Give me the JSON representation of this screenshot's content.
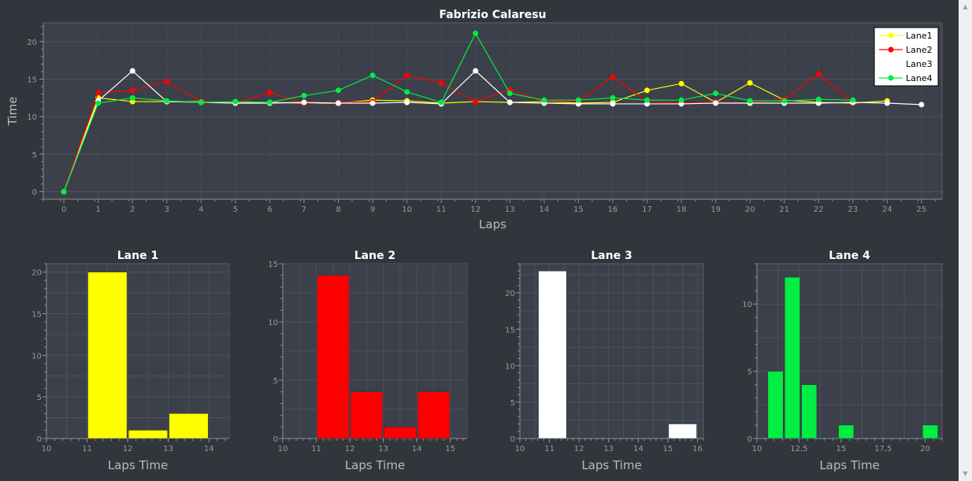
{
  "chart_data": [
    {
      "type": "line",
      "title": "Fabrizio Calaresu",
      "xlabel": "Laps",
      "ylabel": "Time",
      "xlim": [
        -0.6,
        25.6
      ],
      "ylim": [
        -1,
        22.5
      ],
      "xticks": [
        0,
        1,
        2,
        3,
        4,
        5,
        6,
        7,
        8,
        9,
        10,
        11,
        12,
        13,
        14,
        15,
        16,
        17,
        18,
        19,
        20,
        21,
        22,
        23,
        24,
        25
      ],
      "yticks": [
        0,
        5,
        10,
        15,
        20
      ],
      "grid": true,
      "legend_position": "top-right",
      "series": [
        {
          "name": "Lane1",
          "color": "#ffff00",
          "x": [
            0,
            1,
            2,
            3,
            4,
            5,
            6,
            7,
            8,
            9,
            10,
            11,
            12,
            13,
            14,
            15,
            16,
            17,
            18,
            19,
            20,
            21,
            22,
            23,
            24
          ],
          "y": [
            0,
            12.5,
            12,
            12,
            12,
            11.8,
            11.9,
            11.8,
            11.8,
            12.2,
            12.1,
            11.8,
            12,
            11.9,
            12,
            11.8,
            11.9,
            13.5,
            14.4,
            11.9,
            14.5,
            12.2,
            11.9,
            11.8,
            12.1
          ]
        },
        {
          "name": "Lane2",
          "color": "#ff0000",
          "x": [
            0,
            1,
            2,
            3,
            4,
            5,
            6,
            7,
            8,
            9,
            10,
            11,
            12,
            13,
            14,
            15,
            16,
            17,
            18,
            19,
            20,
            21,
            22,
            23
          ],
          "y": [
            0,
            13.2,
            13.5,
            14.7,
            12,
            11.8,
            13.2,
            11.8,
            11.9,
            12,
            15.5,
            14.5,
            12,
            13.6,
            12,
            12,
            15.3,
            12,
            11.8,
            11.9,
            11.8,
            12.3,
            15.7,
            11.8
          ]
        },
        {
          "name": "Lane3",
          "color": "#ffffff",
          "x": [
            0,
            1,
            2,
            3,
            4,
            5,
            6,
            7,
            8,
            9,
            10,
            11,
            12,
            13,
            14,
            15,
            16,
            17,
            18,
            19,
            20,
            21,
            22,
            23,
            24,
            25
          ],
          "y": [
            0,
            12.1,
            16.1,
            12,
            11.9,
            11.8,
            11.8,
            11.9,
            11.8,
            11.8,
            11.9,
            11.7,
            16.1,
            11.9,
            11.8,
            11.7,
            11.7,
            11.7,
            11.7,
            11.8,
            11.8,
            11.8,
            11.8,
            11.9,
            11.8,
            11.6
          ]
        },
        {
          "name": "Lane4",
          "color": "#00ee44",
          "x": [
            0,
            1,
            2,
            3,
            4,
            5,
            6,
            7,
            8,
            9,
            10,
            11,
            12,
            13,
            14,
            15,
            16,
            17,
            18,
            19,
            20,
            21,
            22,
            23
          ],
          "y": [
            0,
            11.8,
            12.5,
            12.1,
            11.9,
            12,
            11.9,
            12.8,
            13.5,
            15.5,
            13.3,
            11.9,
            21.1,
            13.1,
            12.2,
            12.2,
            12.5,
            12.2,
            12.2,
            13.1,
            12.1,
            12.1,
            12.3,
            12.2
          ]
        }
      ]
    },
    {
      "type": "bar",
      "title": "Lane 1",
      "xlabel": "Laps Time",
      "color": "#ffff00",
      "xlim": [
        10,
        14.5
      ],
      "ylim": [
        0,
        21
      ],
      "xticks": [
        10,
        11,
        12,
        13,
        14
      ],
      "yticks": [
        0,
        5,
        10,
        15,
        20
      ],
      "bins": [
        {
          "start": 11,
          "end": 12,
          "value": 20
        },
        {
          "start": 12,
          "end": 13,
          "value": 1
        },
        {
          "start": 13,
          "end": 14,
          "value": 3
        }
      ]
    },
    {
      "type": "bar",
      "title": "Lane 2",
      "xlabel": "Laps Time",
      "color": "#ff0000",
      "xlim": [
        10,
        15.5
      ],
      "ylim": [
        0,
        15
      ],
      "xticks": [
        10,
        11,
        12,
        13,
        14,
        15
      ],
      "yticks": [
        0,
        5,
        10,
        15
      ],
      "bins": [
        {
          "start": 11,
          "end": 12,
          "value": 14
        },
        {
          "start": 12,
          "end": 13,
          "value": 4
        },
        {
          "start": 13,
          "end": 14,
          "value": 1
        },
        {
          "start": 14,
          "end": 15,
          "value": 4
        }
      ]
    },
    {
      "type": "bar",
      "title": "Lane 3",
      "xlabel": "Laps Time",
      "color": "#ffffff",
      "xlim": [
        10,
        16.2
      ],
      "ylim": [
        0,
        24
      ],
      "xticks": [
        10,
        11,
        12,
        13,
        14,
        15,
        16
      ],
      "yticks": [
        0,
        5,
        10,
        15,
        20
      ],
      "bins": [
        {
          "start": 10.6,
          "end": 11.6,
          "value": 23
        },
        {
          "start": 15,
          "end": 16,
          "value": 2
        }
      ]
    },
    {
      "type": "bar",
      "title": "Lane 4",
      "xlabel": "Laps Time",
      "color": "#00ee44",
      "xlim": [
        10,
        21
      ],
      "ylim": [
        0,
        13
      ],
      "xticks": [
        10,
        12.5,
        15,
        17.5,
        20
      ],
      "xtick_labels": [
        "10",
        "12,5",
        "15",
        "17,5",
        "20"
      ],
      "yticks": [
        0,
        5,
        10
      ],
      "bins": [
        {
          "start": 10.6,
          "end": 11.6,
          "value": 5
        },
        {
          "start": 11.6,
          "end": 12.6,
          "value": 12
        },
        {
          "start": 12.6,
          "end": 13.6,
          "value": 4
        },
        {
          "start": 14.8,
          "end": 15.8,
          "value": 1
        },
        {
          "start": 19.8,
          "end": 20.8,
          "value": 1
        }
      ]
    }
  ],
  "icons": {
    "scroll_up": "scroll-up-arrow-icon",
    "scroll_down": "scroll-down-arrow-icon"
  },
  "colors": {
    "background": "#31363d",
    "plot_background": "#3b404a",
    "grid": "#4c525d",
    "axis_text": "#999999",
    "title_text": "#ffffff"
  }
}
